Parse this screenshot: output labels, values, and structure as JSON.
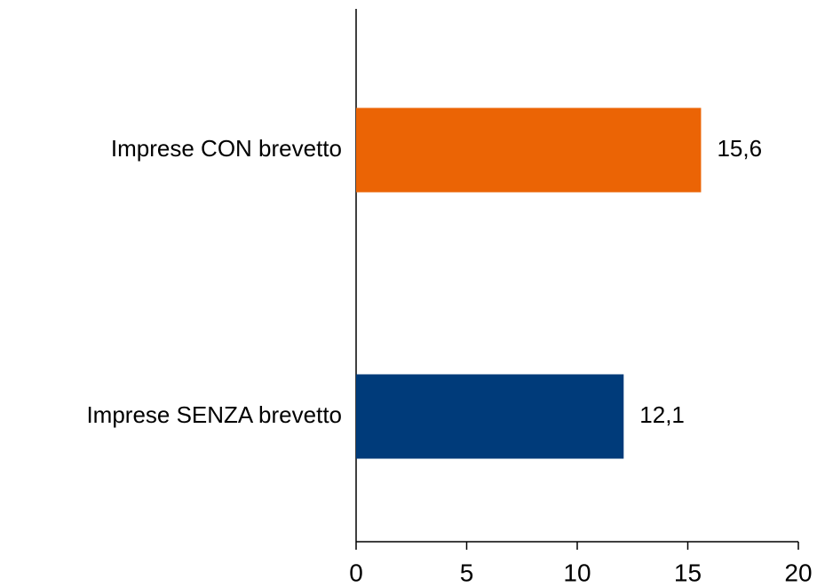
{
  "chart_data": {
    "type": "hbar",
    "categories": [
      "Imprese CON brevetto",
      "Imprese SENZA brevetto"
    ],
    "values": [
      15.6,
      12.1
    ],
    "value_labels": [
      "15,6",
      "12,1"
    ],
    "colors": [
      "#eb6405",
      "#003b7a"
    ],
    "xlim": [
      0,
      20
    ],
    "xticks": [
      0,
      5,
      10,
      15,
      20
    ],
    "grid": false
  }
}
